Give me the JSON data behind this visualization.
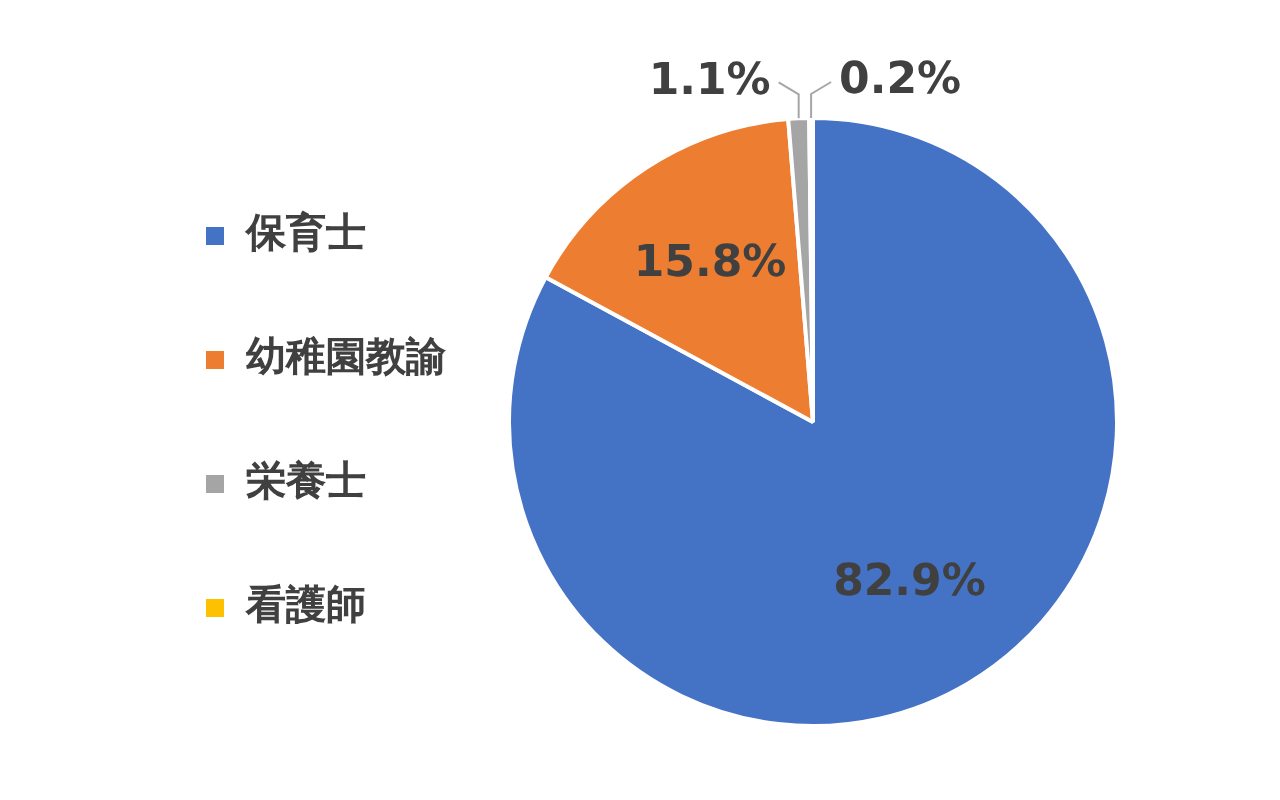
{
  "chart_data": {
    "type": "pie",
    "categories": [
      "保育士",
      "幼稚園教諭",
      "栄養士",
      "看護師"
    ],
    "values": [
      82.9,
      15.8,
      1.1,
      0.2
    ],
    "colors": [
      "#4472c4",
      "#ed7d31",
      "#a5a5a5",
      "#ffc000"
    ],
    "value_labels": [
      "82.9%",
      "15.8%",
      "1.1%",
      "0.2%"
    ],
    "legend": "left"
  }
}
